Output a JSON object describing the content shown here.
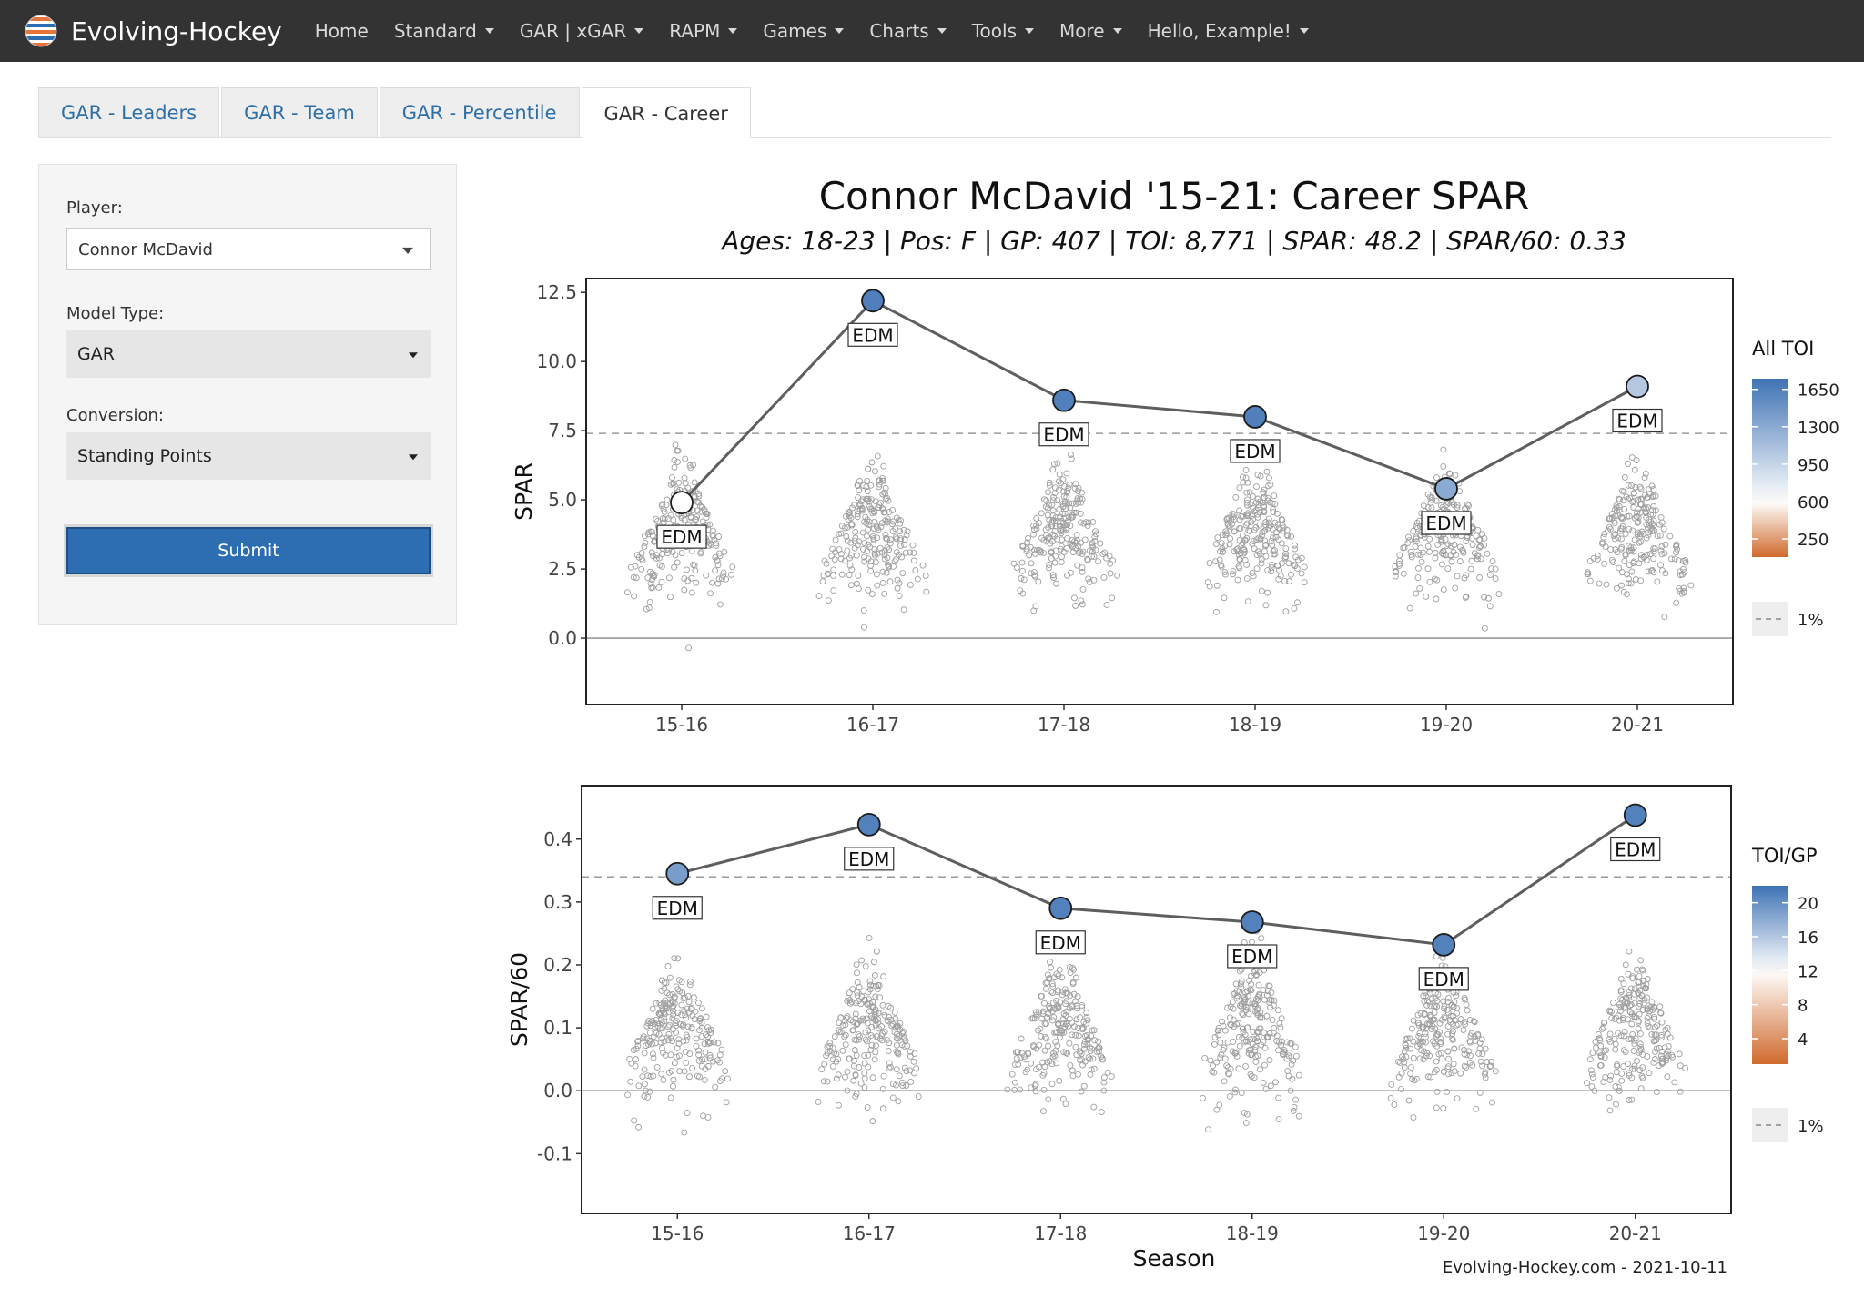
{
  "app": {
    "brand": "Evolving-Hockey",
    "nav": [
      {
        "label": "Home",
        "dropdown": false
      },
      {
        "label": "Standard",
        "dropdown": true
      },
      {
        "label": "GAR | xGAR",
        "dropdown": true
      },
      {
        "label": "RAPM",
        "dropdown": true
      },
      {
        "label": "Games",
        "dropdown": true
      },
      {
        "label": "Charts",
        "dropdown": true
      },
      {
        "label": "Tools",
        "dropdown": true
      },
      {
        "label": "More",
        "dropdown": true
      },
      {
        "label": "Hello, Example!",
        "dropdown": true
      }
    ]
  },
  "tabs": [
    {
      "label": "GAR - Leaders",
      "active": false
    },
    {
      "label": "GAR - Team",
      "active": false
    },
    {
      "label": "GAR - Percentile",
      "active": false
    },
    {
      "label": "GAR - Career",
      "active": true
    }
  ],
  "sidebar": {
    "player_label": "Player:",
    "player_value": "Connor McDavid",
    "model_label": "Model Type:",
    "model_value": "GAR",
    "conversion_label": "Conversion:",
    "conversion_value": "Standing Points",
    "submit_label": "Submit"
  },
  "figure": {
    "title": "Connor McDavid '15-21: Career SPAR",
    "subtitle": "Ages: 18-23 | Pos: F | GP: 407 | TOI: 8,771 | SPAR: 48.2 | SPAR/60: 0.33",
    "xlabel": "Season",
    "caption": "Evolving-Hockey.com - 2021-10-11"
  },
  "colors": {
    "navbar": "#333333",
    "tab_link": "#2f6fa8",
    "submit": "#2d6eb3",
    "line": "#5e5e5e",
    "scale_high": "#3f73b4",
    "scale_mid": "#ffffff",
    "scale_low": "#d06a2c"
  },
  "chart_data": [
    {
      "type": "line",
      "ylabel": "SPAR",
      "categories": [
        "15-16",
        "16-17",
        "17-18",
        "18-19",
        "19-20",
        "20-21"
      ],
      "ylim": [
        -2.4,
        13.0
      ],
      "yticks": [
        "12.5",
        "10.0",
        "7.5",
        "5.0",
        "2.5",
        "0.0"
      ],
      "ytick_values": [
        12.5,
        10.0,
        7.5,
        5.0,
        2.5,
        0.0
      ],
      "hline_1pct": 7.4,
      "zero_line": 0,
      "series": [
        {
          "values": [
            4.9,
            12.2,
            8.6,
            8.0,
            5.4,
            9.1
          ],
          "labels": [
            "EDM",
            "EDM",
            "EDM",
            "EDM",
            "EDM",
            "EDM"
          ],
          "color_values": [
            600,
            1650,
            1650,
            1650,
            1300,
            1050
          ]
        }
      ],
      "legend": {
        "title": "All TOI",
        "ticks": [
          "1650",
          "1300",
          "950",
          "600",
          "250"
        ],
        "tick_values": [
          1650,
          1300,
          950,
          600,
          250
        ],
        "range": [
          80,
          1750
        ],
        "hline_label": "1%",
        "position": "right"
      },
      "background_points": {
        "distribution": "league",
        "min": -2.2,
        "max": 10.0
      }
    },
    {
      "type": "line",
      "ylabel": "SPAR/60",
      "categories": [
        "15-16",
        "16-17",
        "17-18",
        "18-19",
        "19-20",
        "20-21"
      ],
      "ylim": [
        -0.195,
        0.485
      ],
      "yticks": [
        "0.4",
        "0.3",
        "0.2",
        "0.1",
        "0.0",
        "-0.1"
      ],
      "ytick_values": [
        0.4,
        0.3,
        0.2,
        0.1,
        0.0,
        -0.1
      ],
      "hline_1pct": 0.34,
      "zero_line": 0,
      "series": [
        {
          "values": [
            0.345,
            0.423,
            0.29,
            0.268,
            0.232,
            0.438
          ],
          "labels": [
            "EDM",
            "EDM",
            "EDM",
            "EDM",
            "EDM",
            "EDM"
          ],
          "color_values": [
            19,
            21,
            21,
            21,
            21,
            21
          ]
        }
      ],
      "legend": {
        "title": "TOI/GP",
        "ticks": [
          "20",
          "16",
          "12",
          "8",
          "4"
        ],
        "tick_values": [
          20,
          16,
          12,
          8,
          4
        ],
        "range": [
          1,
          22
        ],
        "hline_label": "1%",
        "position": "right"
      },
      "background_points": {
        "distribution": "league",
        "min": -0.19,
        "max": 0.39
      }
    }
  ]
}
